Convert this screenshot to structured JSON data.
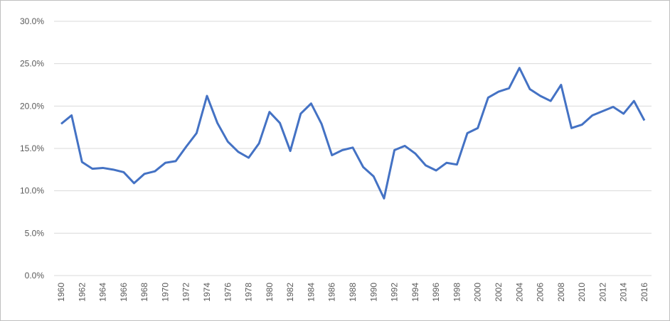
{
  "chart_data": {
    "type": "line",
    "x": [
      1960,
      1961,
      1962,
      1963,
      1964,
      1965,
      1966,
      1967,
      1968,
      1969,
      1970,
      1971,
      1972,
      1973,
      1974,
      1975,
      1976,
      1977,
      1978,
      1979,
      1980,
      1981,
      1982,
      1983,
      1984,
      1985,
      1986,
      1987,
      1988,
      1989,
      1990,
      1991,
      1992,
      1993,
      1994,
      1995,
      1996,
      1997,
      1998,
      1999,
      2000,
      2001,
      2002,
      2003,
      2004,
      2005,
      2006,
      2007,
      2008,
      2009,
      2010,
      2011,
      2012,
      2013,
      2014,
      2015,
      2016
    ],
    "series": [
      {
        "color": "#4472c4",
        "values": [
          17.9,
          18.9,
          13.4,
          12.6,
          12.7,
          12.5,
          12.2,
          10.9,
          12.0,
          12.3,
          13.3,
          13.5,
          15.2,
          16.8,
          21.2,
          18.0,
          15.8,
          14.6,
          13.9,
          15.6,
          19.3,
          18.0,
          14.7,
          19.1,
          20.3,
          17.9,
          14.2,
          14.8,
          15.1,
          12.8,
          11.7,
          9.1,
          14.8,
          15.3,
          14.4,
          13.0,
          12.4,
          13.3,
          13.1,
          16.8,
          17.4,
          21.0,
          21.7,
          22.1,
          24.5,
          22.0,
          21.2,
          20.6,
          22.5,
          17.4,
          17.8,
          18.9,
          19.4,
          19.9,
          19.1,
          20.6,
          18.3
        ]
      }
    ],
    "xlim": [
      1960,
      2016
    ],
    "xticks": [
      1960,
      1962,
      1964,
      1966,
      1968,
      1970,
      1972,
      1974,
      1976,
      1978,
      1980,
      1982,
      1984,
      1986,
      1988,
      1990,
      1992,
      1994,
      1996,
      1998,
      2000,
      2002,
      2004,
      2006,
      2008,
      2010,
      2012,
      2014,
      2016
    ],
    "ylim": [
      0,
      30
    ],
    "yticks": [
      {
        "value": 0,
        "label": "0.0%"
      },
      {
        "value": 5,
        "label": "5.0%"
      },
      {
        "value": 10,
        "label": "10.0%"
      },
      {
        "value": 15,
        "label": "15.0%"
      },
      {
        "value": 20,
        "label": "20.0%"
      },
      {
        "value": 25,
        "label": "25.0%"
      },
      {
        "value": 30,
        "label": "30.0%"
      }
    ],
    "grid": true
  }
}
